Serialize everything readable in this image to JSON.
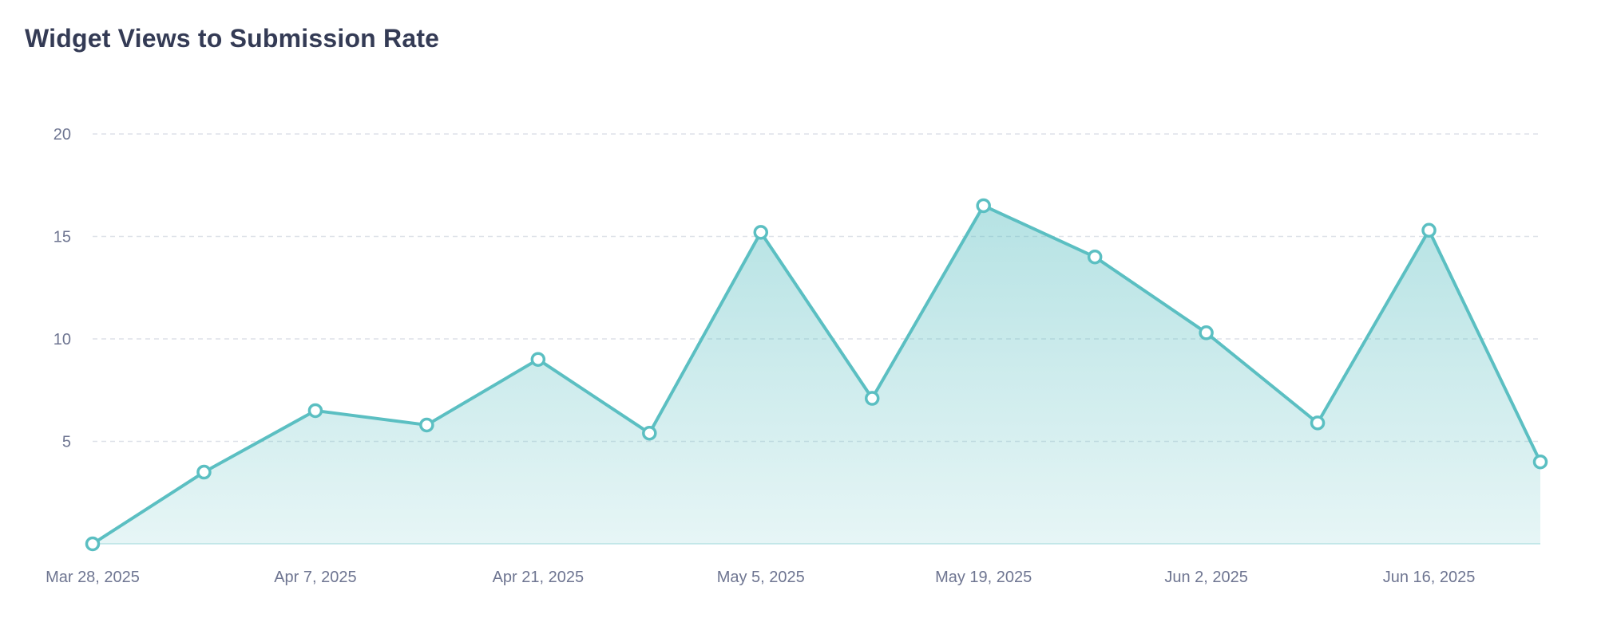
{
  "chart_data": {
    "type": "area",
    "title": "Widget Views to Submission Rate",
    "xlabel": "",
    "ylabel": "",
    "x": [
      "Mar 28, 2025",
      "Apr 2, 2025",
      "Apr 7, 2025",
      "Apr 14, 2025",
      "Apr 21, 2025",
      "Apr 28, 2025",
      "May 5, 2025",
      "May 12, 2025",
      "May 19, 2025",
      "May 26, 2025",
      "Jun 2, 2025",
      "Jun 9, 2025",
      "Jun 16, 2025",
      "Jun 23, 2025"
    ],
    "values": [
      0,
      3.5,
      6.5,
      5.8,
      9.0,
      5.4,
      15.2,
      7.1,
      16.5,
      14.0,
      10.3,
      5.9,
      15.3,
      4.0
    ],
    "x_tick_labels": [
      "Mar 28, 2025",
      "Apr 7, 2025",
      "Apr 21, 2025",
      "May 5, 2025",
      "May 19, 2025",
      "Jun 2, 2025",
      "Jun 16, 2025"
    ],
    "y_ticks": [
      5,
      10,
      15,
      20
    ],
    "ylim": [
      0,
      20
    ],
    "grid": true,
    "legend": "none",
    "colors": {
      "line": "#5bbfc2",
      "fill": "#5bbfc2",
      "marker_fill": "#ffffff",
      "grid": "#dde1e8",
      "tick_text": "#6e7591",
      "title": "#343b55"
    }
  }
}
